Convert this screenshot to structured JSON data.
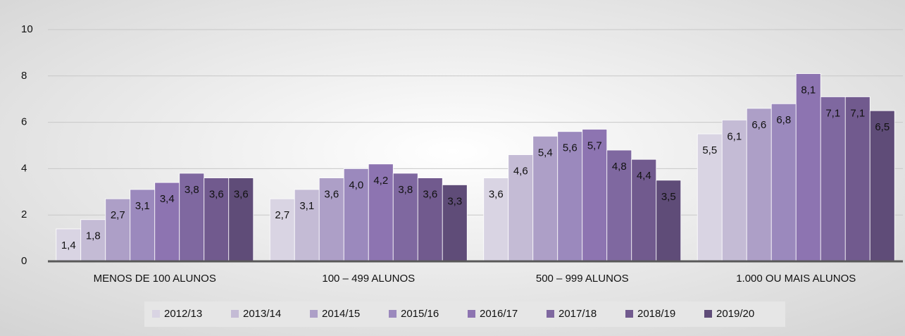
{
  "chart_data": {
    "type": "bar",
    "categories": [
      "MENOS DE 100 ALUNOS",
      "100 – 499 ALUNOS",
      "500 – 999 ALUNOS",
      "1.000 OU MAIS ALUNOS"
    ],
    "series": [
      {
        "name": "2012/13",
        "color": "#d9d4e3",
        "values": [
          1.4,
          2.7,
          3.6,
          5.5
        ],
        "value_labels": [
          "1,4",
          "2,7",
          "3,6",
          "5,5"
        ]
      },
      {
        "name": "2013/14",
        "color": "#c4bbd5",
        "values": [
          1.8,
          3.1,
          4.6,
          6.1
        ],
        "value_labels": [
          "1,8",
          "3,1",
          "4,6",
          "6,1"
        ]
      },
      {
        "name": "2014/15",
        "color": "#ad9fc7",
        "values": [
          2.7,
          3.6,
          5.4,
          6.6
        ],
        "value_labels": [
          "2,7",
          "3,6",
          "5,4",
          "6,6"
        ]
      },
      {
        "name": "2015/16",
        "color": "#9b89bd",
        "values": [
          3.1,
          4.0,
          5.6,
          6.8
        ],
        "value_labels": [
          "3,1",
          "4,0",
          "5,6",
          "6,8"
        ]
      },
      {
        "name": "2016/17",
        "color": "#8d74b1",
        "values": [
          3.4,
          4.2,
          5.7,
          8.1
        ],
        "value_labels": [
          "3,4",
          "4,2",
          "5,7",
          "8,1"
        ]
      },
      {
        "name": "2017/18",
        "color": "#7f68a0",
        "values": [
          3.8,
          3.8,
          4.8,
          7.1
        ],
        "value_labels": [
          "3,8",
          "3,8",
          "4,8",
          "7,1"
        ]
      },
      {
        "name": "2018/19",
        "color": "#715a8e",
        "values": [
          3.6,
          3.6,
          4.4,
          7.1
        ],
        "value_labels": [
          "3,6",
          "3,6",
          "4,4",
          "7,1"
        ]
      },
      {
        "name": "2019/20",
        "color": "#5f4c78",
        "values": [
          3.6,
          3.3,
          3.5,
          6.5
        ],
        "value_labels": [
          "3,6",
          "3,3",
          "3,5",
          "6,5"
        ]
      }
    ],
    "ylim": [
      0,
      10
    ],
    "yticks": [
      0,
      2,
      4,
      6,
      8,
      10
    ],
    "grid": true,
    "legend": "bottom"
  }
}
